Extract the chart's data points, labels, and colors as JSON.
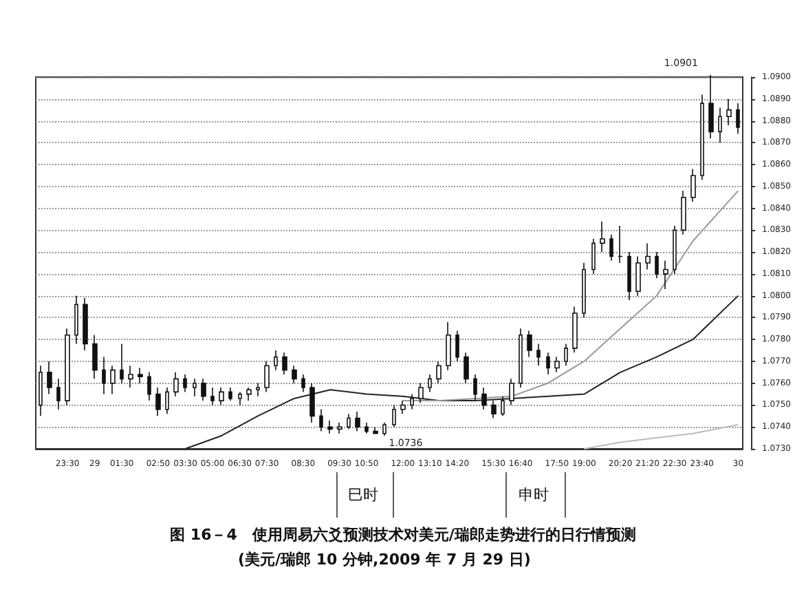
{
  "chart_data": {
    "type": "candlestick",
    "title": "图 16－4　使用周易六爻预测技术对美元/瑞郎走势进行的日行情预测",
    "subtitle": "(美元/瑞郎 10 分钟,2009 年 7 月 29 日)",
    "categories": [
      null,
      null,
      null,
      "23:30",
      null,
      null,
      "29",
      null,
      null,
      "01:30",
      null,
      null,
      null,
      "02:50",
      null,
      null,
      "03:30",
      null,
      null,
      "05:00",
      null,
      null,
      "06:30",
      null,
      null,
      "07:30",
      null,
      null,
      null,
      "08:30",
      null,
      null,
      null,
      "09:30",
      null,
      null,
      "10:50",
      null,
      null,
      null,
      "12:00",
      null,
      null,
      "13:10",
      null,
      null,
      "14:20",
      null,
      null,
      null,
      "15:30",
      null,
      null,
      "16:40",
      null,
      null,
      null,
      "17:50",
      null,
      null,
      "19:00",
      null,
      null,
      null,
      "20:20",
      null,
      null,
      "21:20",
      null,
      null,
      "22:30",
      null,
      null,
      "23:40",
      null,
      null,
      null,
      "30"
    ],
    "ohlc": [
      [
        1.075,
        1.0768,
        1.0745,
        1.0765
      ],
      [
        1.0765,
        1.077,
        1.0755,
        1.0758
      ],
      [
        1.0758,
        1.0762,
        1.0748,
        1.0752
      ],
      [
        1.0752,
        1.0785,
        1.075,
        1.0782
      ],
      [
        1.0782,
        1.08,
        1.0778,
        1.0796
      ],
      [
        1.0796,
        1.0799,
        1.0775,
        1.0778
      ],
      [
        1.0778,
        1.0782,
        1.0762,
        1.0766
      ],
      [
        1.0766,
        1.0772,
        1.0755,
        1.076
      ],
      [
        1.076,
        1.0768,
        1.0755,
        1.0766
      ],
      [
        1.0766,
        1.0778,
        1.076,
        1.0762
      ],
      [
        1.0762,
        1.0768,
        1.0758,
        1.0764
      ],
      [
        1.0764,
        1.0767,
        1.076,
        1.0763
      ],
      [
        1.0763,
        1.0765,
        1.0752,
        1.0755
      ],
      [
        1.0755,
        1.0758,
        1.0745,
        1.0748
      ],
      [
        1.0748,
        1.0758,
        1.0746,
        1.0756
      ],
      [
        1.0756,
        1.0765,
        1.0754,
        1.0762
      ],
      [
        1.0762,
        1.0764,
        1.0756,
        1.0758
      ],
      [
        1.0758,
        1.0762,
        1.0754,
        1.076
      ],
      [
        1.076,
        1.0762,
        1.0752,
        1.0754
      ],
      [
        1.0754,
        1.0758,
        1.075,
        1.0752
      ],
      [
        1.0752,
        1.0758,
        1.075,
        1.0756
      ],
      [
        1.0756,
        1.0758,
        1.0752,
        1.0753
      ],
      [
        1.0753,
        1.0756,
        1.075,
        1.0755
      ],
      [
        1.0755,
        1.0758,
        1.0752,
        1.0757
      ],
      [
        1.0757,
        1.076,
        1.0754,
        1.0758
      ],
      [
        1.0758,
        1.077,
        1.0756,
        1.0768
      ],
      [
        1.0768,
        1.0775,
        1.0766,
        1.0772
      ],
      [
        1.0772,
        1.0774,
        1.0764,
        1.0766
      ],
      [
        1.0766,
        1.0768,
        1.076,
        1.0762
      ],
      [
        1.0762,
        1.0764,
        1.0756,
        1.0758
      ],
      [
        1.0758,
        1.076,
        1.0742,
        1.0745
      ],
      [
        1.0745,
        1.0748,
        1.0738,
        1.074
      ],
      [
        1.074,
        1.0743,
        1.0737,
        1.0739
      ],
      [
        1.0739,
        1.0742,
        1.0737,
        1.074
      ],
      [
        1.074,
        1.0746,
        1.0739,
        1.0744
      ],
      [
        1.0744,
        1.0747,
        1.0738,
        1.074
      ],
      [
        1.074,
        1.0742,
        1.0737,
        1.0738
      ],
      [
        1.0738,
        1.074,
        1.0737,
        1.0737
      ],
      [
        1.0737,
        1.0742,
        1.0736,
        1.0741
      ],
      [
        1.0741,
        1.075,
        1.074,
        1.0748
      ],
      [
        1.0748,
        1.0752,
        1.0746,
        1.075
      ],
      [
        1.075,
        1.0755,
        1.0748,
        1.0753
      ],
      [
        1.0753,
        1.076,
        1.0751,
        1.0758
      ],
      [
        1.0758,
        1.0764,
        1.0756,
        1.0762
      ],
      [
        1.0762,
        1.077,
        1.076,
        1.0768
      ],
      [
        1.0768,
        1.0788,
        1.0766,
        1.0782
      ],
      [
        1.0782,
        1.0784,
        1.077,
        1.0772
      ],
      [
        1.0772,
        1.0774,
        1.076,
        1.0762
      ],
      [
        1.0762,
        1.0764,
        1.0752,
        1.0755
      ],
      [
        1.0755,
        1.0758,
        1.0748,
        1.075
      ],
      [
        1.075,
        1.0752,
        1.0744,
        1.0746
      ],
      [
        1.0746,
        1.0754,
        1.0745,
        1.0752
      ],
      [
        1.0752,
        1.0762,
        1.075,
        1.076
      ],
      [
        1.076,
        1.0785,
        1.0758,
        1.0782
      ],
      [
        1.0782,
        1.0784,
        1.0772,
        1.0775
      ],
      [
        1.0775,
        1.0778,
        1.0768,
        1.0772
      ],
      [
        1.0772,
        1.0774,
        1.0764,
        1.0767
      ],
      [
        1.0767,
        1.0772,
        1.0765,
        1.077
      ],
      [
        1.077,
        1.0778,
        1.0768,
        1.0776
      ],
      [
        1.0776,
        1.0795,
        1.0774,
        1.0792
      ],
      [
        1.0792,
        1.0815,
        1.079,
        1.0812
      ],
      [
        1.0812,
        1.0826,
        1.081,
        1.0824
      ],
      [
        1.0824,
        1.0834,
        1.082,
        1.0826
      ],
      [
        1.0826,
        1.0828,
        1.0816,
        1.0818
      ],
      [
        1.0818,
        1.0832,
        1.0815,
        1.0818
      ],
      [
        1.0818,
        1.082,
        1.0798,
        1.0802
      ],
      [
        1.0802,
        1.0818,
        1.08,
        1.0815
      ],
      [
        1.0815,
        1.0824,
        1.0812,
        1.0818
      ],
      [
        1.0818,
        1.082,
        1.0808,
        1.081
      ],
      [
        1.081,
        1.0816,
        1.0803,
        1.0812
      ],
      [
        1.0812,
        1.0832,
        1.081,
        1.083
      ],
      [
        1.083,
        1.0848,
        1.0828,
        1.0845
      ],
      [
        1.0845,
        1.0858,
        1.0843,
        1.0855
      ],
      [
        1.0855,
        1.0892,
        1.0853,
        1.0888
      ],
      [
        1.0888,
        1.0901,
        1.0872,
        1.0875
      ],
      [
        1.0875,
        1.0886,
        1.087,
        1.0882
      ],
      [
        1.0882,
        1.089,
        1.0878,
        1.0885
      ],
      [
        1.0885,
        1.0888,
        1.0874,
        1.0877
      ]
    ],
    "series": [
      {
        "type": "line",
        "color": "#222222",
        "values": [
          null,
          null,
          null,
          null,
          null,
          null,
          null,
          null,
          null,
          null,
          null,
          null,
          null,
          null,
          null,
          null,
          1.073,
          null,
          null,
          null,
          1.0736,
          null,
          null,
          null,
          1.0745,
          null,
          null,
          null,
          1.0753,
          null,
          null,
          null,
          1.0757,
          null,
          null,
          null,
          1.0755,
          null,
          null,
          null,
          1.0754,
          null,
          null,
          null,
          1.0752,
          null,
          null,
          null,
          1.0752,
          null,
          null,
          null,
          1.0753,
          null,
          null,
          null,
          1.0754,
          null,
          null,
          null,
          1.0755,
          null,
          null,
          null,
          1.0765,
          null,
          null,
          null,
          1.0772,
          null,
          null,
          null,
          1.078,
          null,
          null,
          null,
          null,
          1.08
        ]
      },
      {
        "type": "line",
        "color": "#999999",
        "values": [
          null,
          null,
          null,
          null,
          null,
          null,
          null,
          null,
          null,
          null,
          null,
          null,
          null,
          null,
          null,
          null,
          null,
          null,
          null,
          null,
          null,
          null,
          null,
          null,
          null,
          null,
          null,
          null,
          null,
          null,
          null,
          null,
          null,
          null,
          null,
          null,
          null,
          null,
          null,
          null,
          1.0752,
          null,
          null,
          null,
          1.0752,
          null,
          null,
          null,
          1.0753,
          null,
          null,
          null,
          1.0754,
          null,
          null,
          null,
          1.076,
          null,
          null,
          null,
          1.077,
          null,
          null,
          null,
          1.0785,
          null,
          null,
          null,
          1.08,
          null,
          null,
          null,
          1.0825,
          null,
          null,
          null,
          null,
          1.0848
        ]
      },
      {
        "type": "line",
        "color": "#bbbbbb",
        "values": [
          null,
          null,
          null,
          null,
          null,
          null,
          null,
          null,
          null,
          null,
          null,
          null,
          null,
          null,
          null,
          null,
          null,
          null,
          null,
          null,
          null,
          null,
          null,
          null,
          null,
          null,
          null,
          null,
          null,
          null,
          null,
          null,
          null,
          null,
          null,
          null,
          null,
          null,
          null,
          null,
          null,
          null,
          null,
          null,
          null,
          null,
          null,
          null,
          null,
          null,
          null,
          null,
          null,
          null,
          null,
          null,
          null,
          null,
          null,
          null,
          1.073,
          null,
          null,
          null,
          1.0733,
          null,
          null,
          null,
          1.0735,
          null,
          null,
          null,
          1.0737,
          null,
          null,
          null,
          null,
          1.0741
        ]
      }
    ],
    "ylim": [
      1.073,
      1.09
    ],
    "yticks": [
      {
        "value": 1.073,
        "label": "1.0730"
      },
      {
        "value": 1.074,
        "label": "1.0740"
      },
      {
        "value": 1.075,
        "label": "1.0750"
      },
      {
        "value": 1.076,
        "label": "1.0760"
      },
      {
        "value": 1.077,
        "label": "1.0770"
      },
      {
        "value": 1.078,
        "label": "1.0780"
      },
      {
        "value": 1.079,
        "label": "1.0790"
      },
      {
        "value": 1.08,
        "label": "1.0800"
      },
      {
        "value": 1.081,
        "label": "1.0810"
      },
      {
        "value": 1.082,
        "label": "1.0820"
      },
      {
        "value": 1.083,
        "label": "1.0830"
      },
      {
        "value": 1.084,
        "label": "1.0840"
      },
      {
        "value": 1.085,
        "label": "1.0850"
      },
      {
        "value": 1.086,
        "label": "1.0860"
      },
      {
        "value": 1.087,
        "label": "1.0870"
      },
      {
        "value": 1.088,
        "label": "1.0880"
      },
      {
        "value": 1.089,
        "label": "1.0890"
      },
      {
        "value": 1.09,
        "label": "1.0900"
      }
    ],
    "grid": "y",
    "marker": "none",
    "line_style": "solid",
    "annotations": [
      "1.0901",
      "1.0736",
      "巳时",
      "申时"
    ]
  }
}
